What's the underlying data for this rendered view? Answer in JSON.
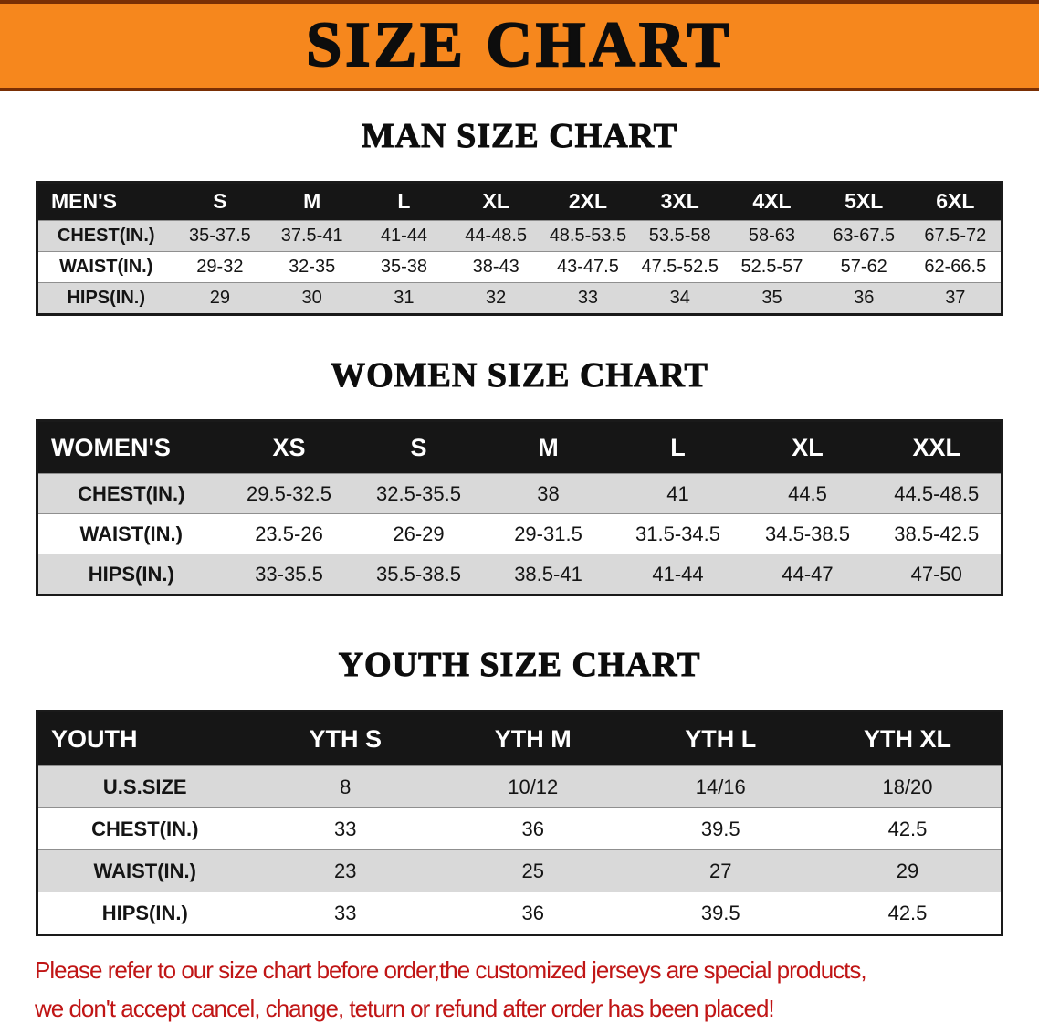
{
  "banner": {
    "title": "SIZE CHART",
    "bg_color": "#f6871d",
    "border_color": "#7a2f04"
  },
  "colors": {
    "table_header_bg": "#161616",
    "row_alt": "#d9d9d9",
    "disclaimer_text": "#c01515"
  },
  "disclaimer": {
    "line1": "Please refer to our size chart before order,the customized jerseys are special products,",
    "line2": "we don't accept cancel, change, teturn or refund after order has been placed!"
  },
  "chart_data": [
    {
      "type": "table",
      "title": "MAN SIZE CHART",
      "columns": [
        "MEN'S",
        "S",
        "M",
        "L",
        "XL",
        "2XL",
        "3XL",
        "4XL",
        "5XL",
        "6XL"
      ],
      "rows": [
        [
          "CHEST(IN.)",
          "35-37.5",
          "37.5-41",
          "41-44",
          "44-48.5",
          "48.5-53.5",
          "53.5-58",
          "58-63",
          "63-67.5",
          "67.5-72"
        ],
        [
          "WAIST(IN.)",
          "29-32",
          "32-35",
          "35-38",
          "38-43",
          "43-47.5",
          "47.5-52.5",
          "52.5-57",
          "57-62",
          "62-66.5"
        ],
        [
          "HIPS(IN.)",
          "29",
          "30",
          "31",
          "32",
          "33",
          "34",
          "35",
          "36",
          "37"
        ]
      ]
    },
    {
      "type": "table",
      "title": "WOMEN SIZE CHART",
      "columns": [
        "WOMEN'S",
        "XS",
        "S",
        "M",
        "L",
        "XL",
        "XXL"
      ],
      "rows": [
        [
          "CHEST(IN.)",
          "29.5-32.5",
          "32.5-35.5",
          "38",
          "41",
          "44.5",
          "44.5-48.5"
        ],
        [
          "WAIST(IN.)",
          "23.5-26",
          "26-29",
          "29-31.5",
          "31.5-34.5",
          "34.5-38.5",
          "38.5-42.5"
        ],
        [
          "HIPS(IN.)",
          "33-35.5",
          "35.5-38.5",
          "38.5-41",
          "41-44",
          "44-47",
          "47-50"
        ]
      ]
    },
    {
      "type": "table",
      "title": "YOUTH SIZE CHART",
      "columns": [
        "YOUTH",
        "YTH S",
        "YTH M",
        "YTH L",
        "YTH XL"
      ],
      "rows": [
        [
          "U.S.SIZE",
          "8",
          "10/12",
          "14/16",
          "18/20"
        ],
        [
          "CHEST(IN.)",
          "33",
          "36",
          "39.5",
          "42.5"
        ],
        [
          "WAIST(IN.)",
          "23",
          "25",
          "27",
          "29"
        ],
        [
          "HIPS(IN.)",
          "33",
          "36",
          "39.5",
          "42.5"
        ]
      ]
    }
  ]
}
